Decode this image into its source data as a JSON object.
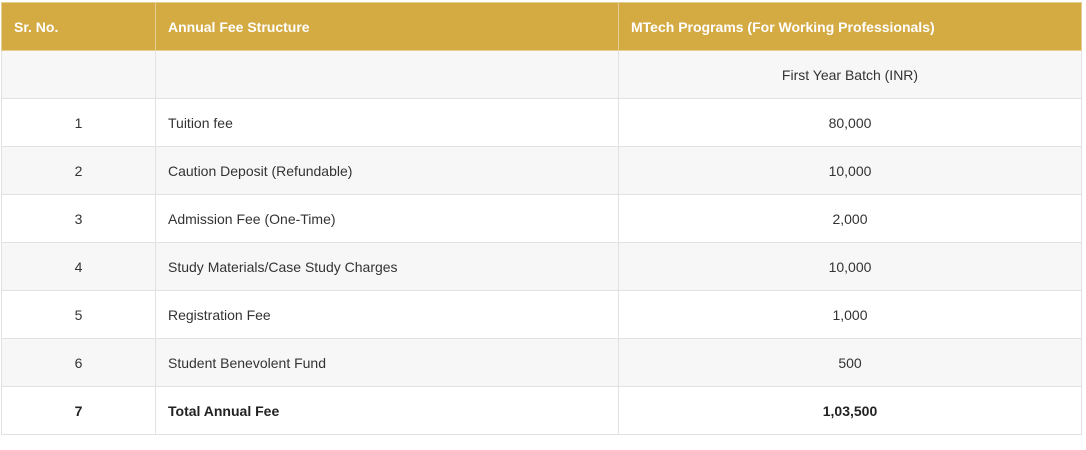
{
  "table": {
    "headers": [
      "Sr. No.",
      "Annual Fee Structure",
      "MTech Programs (For Working Professionals)"
    ],
    "subheader": {
      "sr": "",
      "item": "",
      "value": "First Year Batch (INR)"
    },
    "rows": [
      {
        "sr": "1",
        "item": "Tuition fee",
        "value": "80,000"
      },
      {
        "sr": "2",
        "item": "Caution Deposit (Refundable)",
        "value": "10,000"
      },
      {
        "sr": "3",
        "item": "Admission Fee (One-Time)",
        "value": "2,000"
      },
      {
        "sr": "4",
        "item": "Study Materials/Case Study Charges",
        "value": "10,000"
      },
      {
        "sr": "5",
        "item": "Registration Fee",
        "value": "1,000"
      },
      {
        "sr": "6",
        "item": "Student Benevolent Fund",
        "value": "500"
      },
      {
        "sr": "7",
        "item": "Total Annual Fee",
        "value": "1,03,500"
      }
    ]
  },
  "colors": {
    "header_bg": "#d4aa43",
    "header_text": "#ffffff",
    "stripe": "#f7f7f7"
  }
}
